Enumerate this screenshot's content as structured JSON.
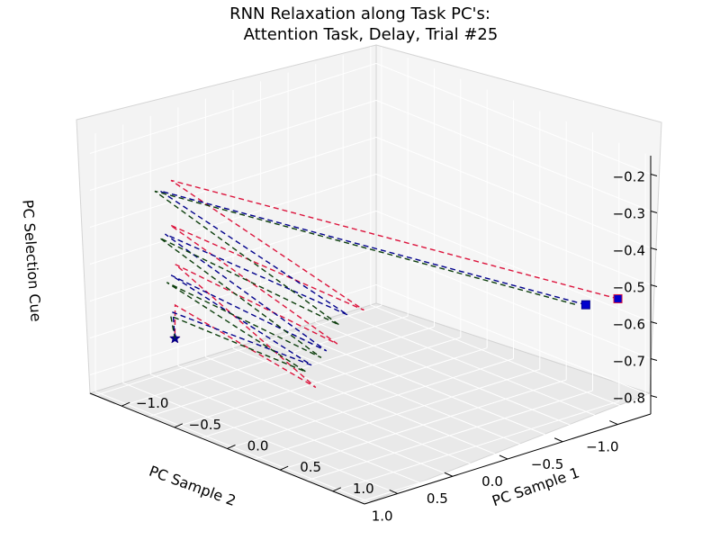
{
  "chart_data": {
    "type": "line3d",
    "title": "RNN Relaxation along Task PC's:",
    "subtitle": "Attention Task, Delay, Trial #25",
    "xlabel": "PC Sample 1",
    "ylabel": "PC Sample 2",
    "zlabel": "PC Selection Cue",
    "x_ticks": [
      "−1.0",
      "−0.5",
      "0.0",
      "0.5",
      "1.0"
    ],
    "y_ticks": [
      "1.0",
      "0.5",
      "0.0",
      "−0.5",
      "−1.0"
    ],
    "z_ticks": [
      "−0.2",
      "−0.3",
      "−0.4",
      "−0.5",
      "−0.6",
      "−0.7",
      "−0.8"
    ],
    "grid": true,
    "series": [
      {
        "color": "#dc143c",
        "line_style": "dashed",
        "start_marker": "square",
        "end_marker": "star",
        "points_approx": [
          [
            1.25,
            -1.05,
            -0.52
          ],
          [
            -0.95,
            0.9,
            -0.27
          ],
          [
            0.2,
            0.25,
            -0.55
          ],
          [
            -0.8,
            1.05,
            -0.36
          ],
          [
            0.0,
            0.3,
            -0.66
          ],
          [
            -0.7,
            1.1,
            -0.45
          ],
          [
            -0.1,
            0.4,
            -0.78
          ],
          [
            -0.65,
            1.15,
            -0.55
          ],
          [
            -0.6,
            1.2,
            -0.63
          ]
        ]
      },
      {
        "color": "#00008b",
        "line_style": "dashed",
        "start_marker": "square",
        "end_marker": "star",
        "points_approx": [
          [
            1.05,
            -0.95,
            -0.55
          ],
          [
            -1.0,
            0.95,
            -0.3
          ],
          [
            0.1,
            0.3,
            -0.57
          ],
          [
            -0.85,
            1.05,
            -0.39
          ],
          [
            -0.05,
            0.35,
            -0.68
          ],
          [
            -0.72,
            1.12,
            -0.48
          ],
          [
            -0.12,
            0.42,
            -0.72
          ],
          [
            -0.66,
            1.16,
            -0.57
          ],
          [
            -0.6,
            1.2,
            -0.63
          ]
        ]
      },
      {
        "color": "#0b3d0b",
        "line_style": "dashed",
        "start_marker": "none",
        "end_marker": "none",
        "points_approx": [
          [
            1.0,
            -0.9,
            -0.55
          ],
          [
            -1.02,
            0.98,
            -0.3
          ],
          [
            0.05,
            0.33,
            -0.6
          ],
          [
            -0.87,
            1.08,
            -0.4
          ],
          [
            -0.08,
            0.37,
            -0.7
          ],
          [
            -0.74,
            1.14,
            -0.5
          ],
          [
            -0.15,
            0.44,
            -0.74
          ],
          [
            -0.67,
            1.17,
            -0.58
          ],
          [
            -0.6,
            1.2,
            -0.63
          ]
        ]
      }
    ]
  }
}
